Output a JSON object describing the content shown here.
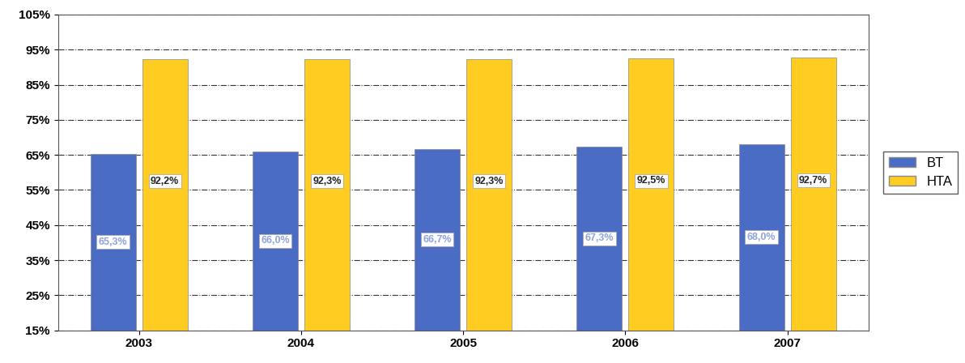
{
  "chart_data": {
    "type": "bar",
    "categories": [
      "2003",
      "2004",
      "2005",
      "2006",
      "2007"
    ],
    "series": [
      {
        "name": "BT",
        "color": "#4a6cc4",
        "values": [
          65.3,
          66.0,
          66.7,
          67.3,
          68.0
        ],
        "value_labels": [
          "65,3%",
          "66,0%",
          "66,7%",
          "67,3%",
          "68,0%"
        ]
      },
      {
        "name": "HTA",
        "color": "#ffcc22",
        "values": [
          92.2,
          92.3,
          92.3,
          92.5,
          92.7
        ],
        "value_labels": [
          "92,2%",
          "92,3%",
          "92,3%",
          "92,5%",
          "92,7%"
        ]
      }
    ],
    "ylim": [
      15,
      105
    ],
    "yticks": [
      {
        "value": 15,
        "label": "15%"
      },
      {
        "value": 25,
        "label": "25%"
      },
      {
        "value": 35,
        "label": "35%"
      },
      {
        "value": 45,
        "label": "45%"
      },
      {
        "value": 55,
        "label": "55%"
      },
      {
        "value": 65,
        "label": "65%"
      },
      {
        "value": 75,
        "label": "75%"
      },
      {
        "value": 85,
        "label": "85%"
      },
      {
        "value": 95,
        "label": "95%"
      },
      {
        "value": 105,
        "label": "105%"
      }
    ],
    "grid": true,
    "legend": "right",
    "data_labels": true
  }
}
